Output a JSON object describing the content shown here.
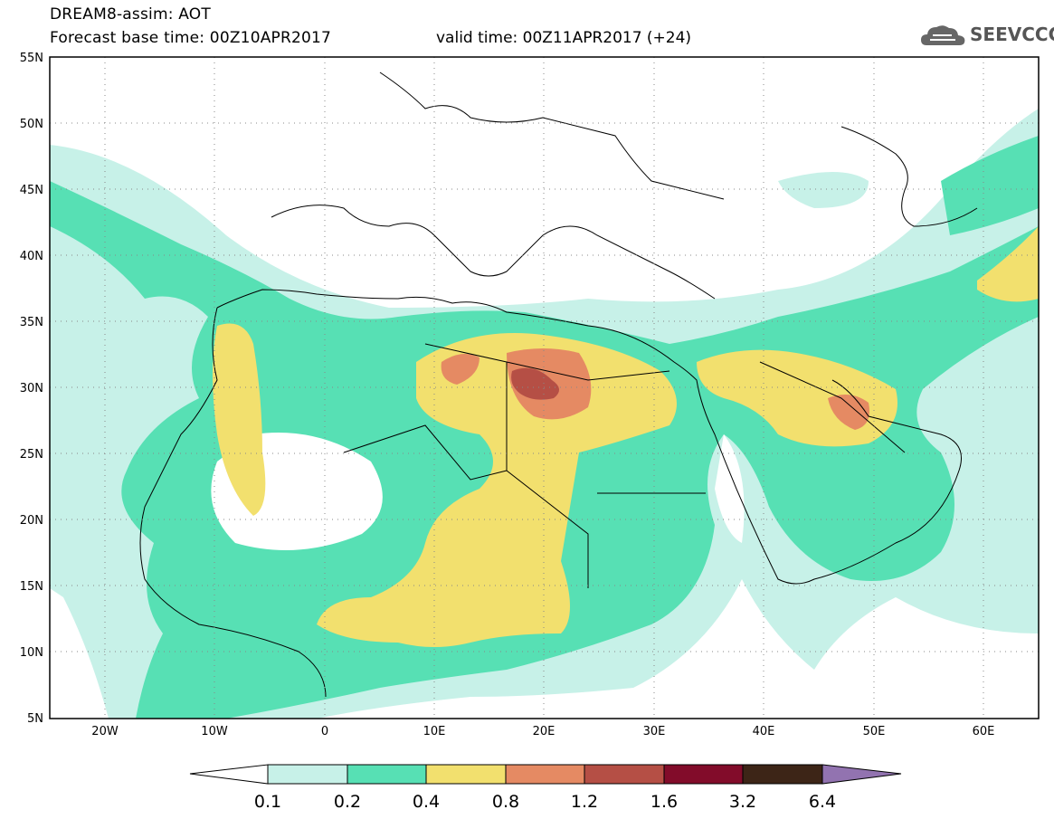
{
  "title": {
    "line1": "DREAM8-assim: AOT",
    "line2": "Forecast base time: 00Z10APR2017",
    "valid": "valid time: 00Z11APR2017 (+24)"
  },
  "logo": {
    "text": "SEEVCCC",
    "icon": "cloud-icon"
  },
  "map": {
    "lat_labels": [
      "55N",
      "50N",
      "45N",
      "40N",
      "35N",
      "30N",
      "25N",
      "20N",
      "15N",
      "10N",
      "5N"
    ],
    "lon_labels": [
      "20W",
      "10W",
      "0",
      "10E",
      "20E",
      "30E",
      "40E",
      "50E",
      "60E"
    ],
    "extent": {
      "lon": [
        -25,
        65
      ],
      "lat": [
        5,
        55
      ]
    }
  },
  "colorbar": {
    "labels": [
      "0.1",
      "0.2",
      "0.4",
      "0.8",
      "1.2",
      "1.6",
      "3.2",
      "6.4"
    ],
    "colors": [
      "#ffffff",
      "#c7f1e8",
      "#57e0b4",
      "#f2e06e",
      "#e58a63",
      "#b54f45",
      "#820c2a",
      "#3d2517",
      "#9273b0"
    ]
  },
  "colors": {
    "level1": "#c7f1e8",
    "level2": "#57e0b4",
    "level3": "#f2e06e",
    "level4": "#e58a63",
    "level5": "#b54f45"
  }
}
